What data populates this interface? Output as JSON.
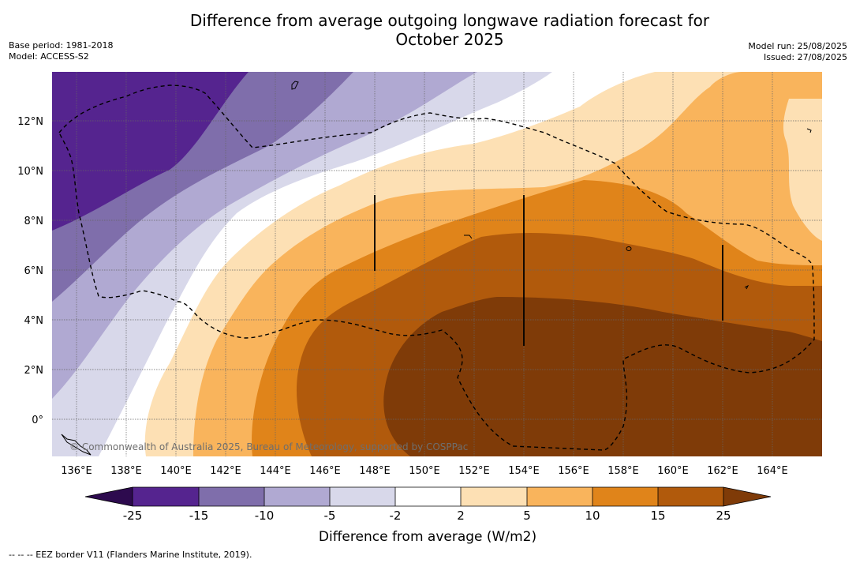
{
  "title_line1": "Difference from average outgoing longwave radiation forecast for",
  "title_line2": "October 2025",
  "base_period": "Base period: 1981-2018",
  "model": "Model: ACCESS-S2",
  "model_run": "Model run: 25/08/2025",
  "issued": "Issued: 27/08/2025",
  "copyright": "© Commonwealth of Australia 2025, Bureau of Meteorology, supported by COSPPac",
  "lon_labels": [
    "136°E",
    "138°E",
    "140°E",
    "142°E",
    "144°E",
    "146°E",
    "148°E",
    "150°E",
    "152°E",
    "154°E",
    "156°E",
    "158°E",
    "160°E",
    "162°E",
    "164°E"
  ],
  "lat_labels": [
    "12°N",
    "10°N",
    "8°N",
    "6°N",
    "4°N",
    "2°N",
    "0°"
  ],
  "colorbar": {
    "title": "Difference from average (W/m2)",
    "ticks": [
      "-25",
      "-15",
      "-10",
      "-5",
      "-2",
      "2",
      "5",
      "10",
      "15",
      "25"
    ],
    "colors": {
      "below_min": "#2d0a4e",
      "c1": "#55248f",
      "c2": "#7f6eab",
      "c3": "#b0a9d2",
      "c4": "#d8d8ea",
      "c5": "#ffffff",
      "c6": "#fde0b4",
      "c7": "#f9b45c",
      "c8": "#e0841a",
      "c9": "#b15a0c",
      "above_max": "#7f3b08"
    }
  },
  "footnote": "--  --  -- EEZ border V11 (Flanders Marine Institute, 2019)."
}
